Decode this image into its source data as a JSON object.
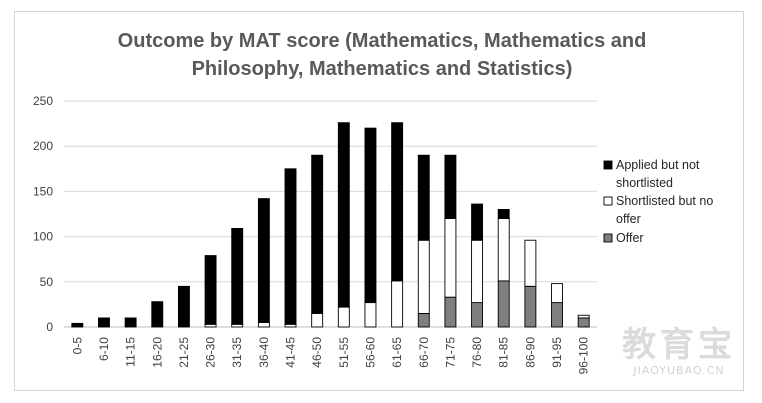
{
  "chart_data": {
    "type": "bar",
    "stacked": true,
    "title_lines": [
      "Outcome by MAT score (Mathematics, Mathematics and",
      "Philosophy, Mathematics and Statistics)"
    ],
    "xlabel": "",
    "ylabel": "",
    "ylim": [
      0,
      250
    ],
    "yticks": [
      0,
      50,
      100,
      150,
      200,
      250
    ],
    "grid": true,
    "legend_position": "right",
    "categories": [
      "0-5",
      "6-10",
      "11-15",
      "16-20",
      "21-25",
      "26-30",
      "31-35",
      "36-40",
      "41-45",
      "46-50",
      "51-55",
      "56-60",
      "61-65",
      "66-70",
      "71-75",
      "76-80",
      "81-85",
      "86-90",
      "91-95",
      "96-100"
    ],
    "series": [
      {
        "name": "Offer",
        "color": "#7f7f7f",
        "values": [
          0,
          0,
          0,
          0,
          0,
          0,
          0,
          0,
          0,
          0,
          0,
          0,
          0,
          15,
          33,
          27,
          51,
          45,
          27,
          10
        ]
      },
      {
        "name": "Shortlisted but no offer",
        "color": "#ffffff",
        "values": [
          0,
          0,
          0,
          0,
          0,
          3,
          3,
          5,
          3,
          15,
          22,
          27,
          51,
          81,
          87,
          69,
          69,
          51,
          21,
          3
        ]
      },
      {
        "name": "Applied but not shortlisted",
        "color": "#000000",
        "values": [
          4,
          10,
          10,
          28,
          45,
          76,
          106,
          137,
          172,
          175,
          204,
          193,
          175,
          94,
          70,
          40,
          10,
          0,
          0,
          0
        ]
      }
    ],
    "legend_entries": [
      {
        "lines": [
          "Applied but not",
          "shortlisted"
        ],
        "color": "#000000"
      },
      {
        "lines": [
          "Shortlisted but no",
          "offer"
        ],
        "color": "#ffffff"
      },
      {
        "lines": [
          "Offer"
        ],
        "color": "#7f7f7f"
      }
    ]
  },
  "watermark": {
    "top": "教育宝",
    "bottom": "JIAOYUBAO.CN"
  }
}
